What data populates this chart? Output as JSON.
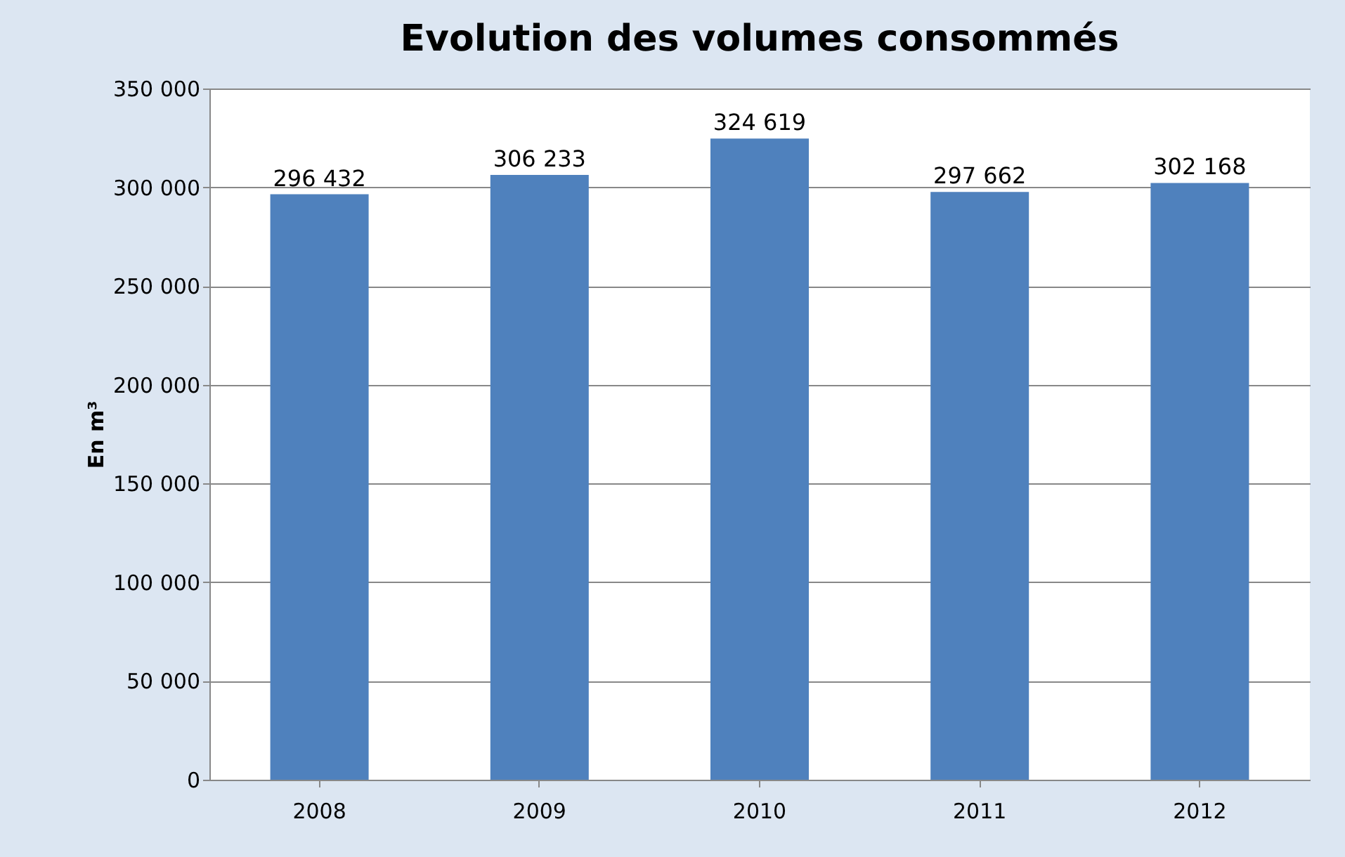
{
  "chart_data": {
    "type": "bar",
    "title": "Evolution des volumes consommés",
    "ylabel": "En m³",
    "categories": [
      "2008",
      "2009",
      "2010",
      "2011",
      "2012"
    ],
    "values": [
      296432,
      306233,
      324619,
      297662,
      302168
    ],
    "value_labels": [
      "296 432",
      "306 233",
      "324 619",
      "297 662",
      "302 168"
    ],
    "color": "#4f81bd",
    "ylim": [
      0,
      350000
    ],
    "yticks": [
      0,
      {
        "value": 50000,
        "label": "50 000"
      },
      {
        "value": 100000,
        "label": "100 000"
      },
      {
        "value": 150000,
        "label": "150 000"
      },
      {
        "value": 200000,
        "label": "200 000"
      },
      {
        "value": 250000,
        "label": "250 000"
      },
      {
        "value": 300000,
        "label": "300 000"
      },
      {
        "value": 350000,
        "label": "350 000"
      }
    ],
    "grid": "y"
  }
}
